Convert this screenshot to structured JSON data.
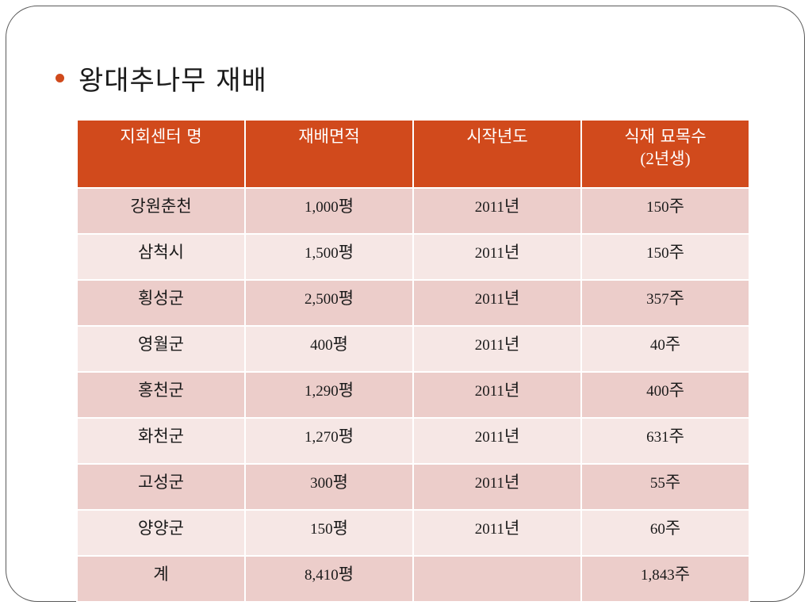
{
  "slide": {
    "title": "왕대추나무 재배"
  },
  "table": {
    "headers": {
      "center": "지회센터 명",
      "area": "재배면적",
      "year": "시작년도",
      "trees_line1": "식재 묘목수",
      "trees_line2_open": "(2",
      "trees_line2_word": "년생",
      "trees_line2_close": ")"
    },
    "rows": [
      {
        "center": "강원춘천",
        "area": "1,000",
        "area_unit": "평",
        "year": "2011",
        "year_unit": "년",
        "trees": "150",
        "trees_unit": "주"
      },
      {
        "center": "삼척시",
        "area": "1,500",
        "area_unit": "평",
        "year": "2011",
        "year_unit": "년",
        "trees": "150",
        "trees_unit": "주"
      },
      {
        "center": "횡성군",
        "area": "2,500",
        "area_unit": "평",
        "year": "2011",
        "year_unit": "년",
        "trees": "357",
        "trees_unit": "주"
      },
      {
        "center": "영월군",
        "area": "400",
        "area_unit": "평",
        "year": "2011",
        "year_unit": "년",
        "trees": "40",
        "trees_unit": "주"
      },
      {
        "center": "홍천군",
        "area": "1,290",
        "area_unit": "평",
        "year": "2011",
        "year_unit": "년",
        "trees": "400",
        "trees_unit": "주"
      },
      {
        "center": "화천군",
        "area": "1,270",
        "area_unit": "평",
        "year": "2011",
        "year_unit": "년",
        "trees": "631",
        "trees_unit": "주"
      },
      {
        "center": "고성군",
        "area": "300",
        "area_unit": "평",
        "year": "2011",
        "year_unit": "년",
        "trees": "55",
        "trees_unit": "주"
      },
      {
        "center": "양양군",
        "area": "150",
        "area_unit": "평",
        "year": "2011",
        "year_unit": "년",
        "trees": "60",
        "trees_unit": "주"
      }
    ],
    "total": {
      "center": "계",
      "area": "8,410",
      "area_unit": "평",
      "trees": "1,843",
      "trees_unit": "주"
    }
  },
  "colors": {
    "header_fill": "#d14a1c",
    "row_dark": "#eccdca",
    "row_light": "#f6e7e5",
    "bullet": "#d04a1c"
  },
  "icons": {
    "bullet": "bullet-dot-icon"
  }
}
